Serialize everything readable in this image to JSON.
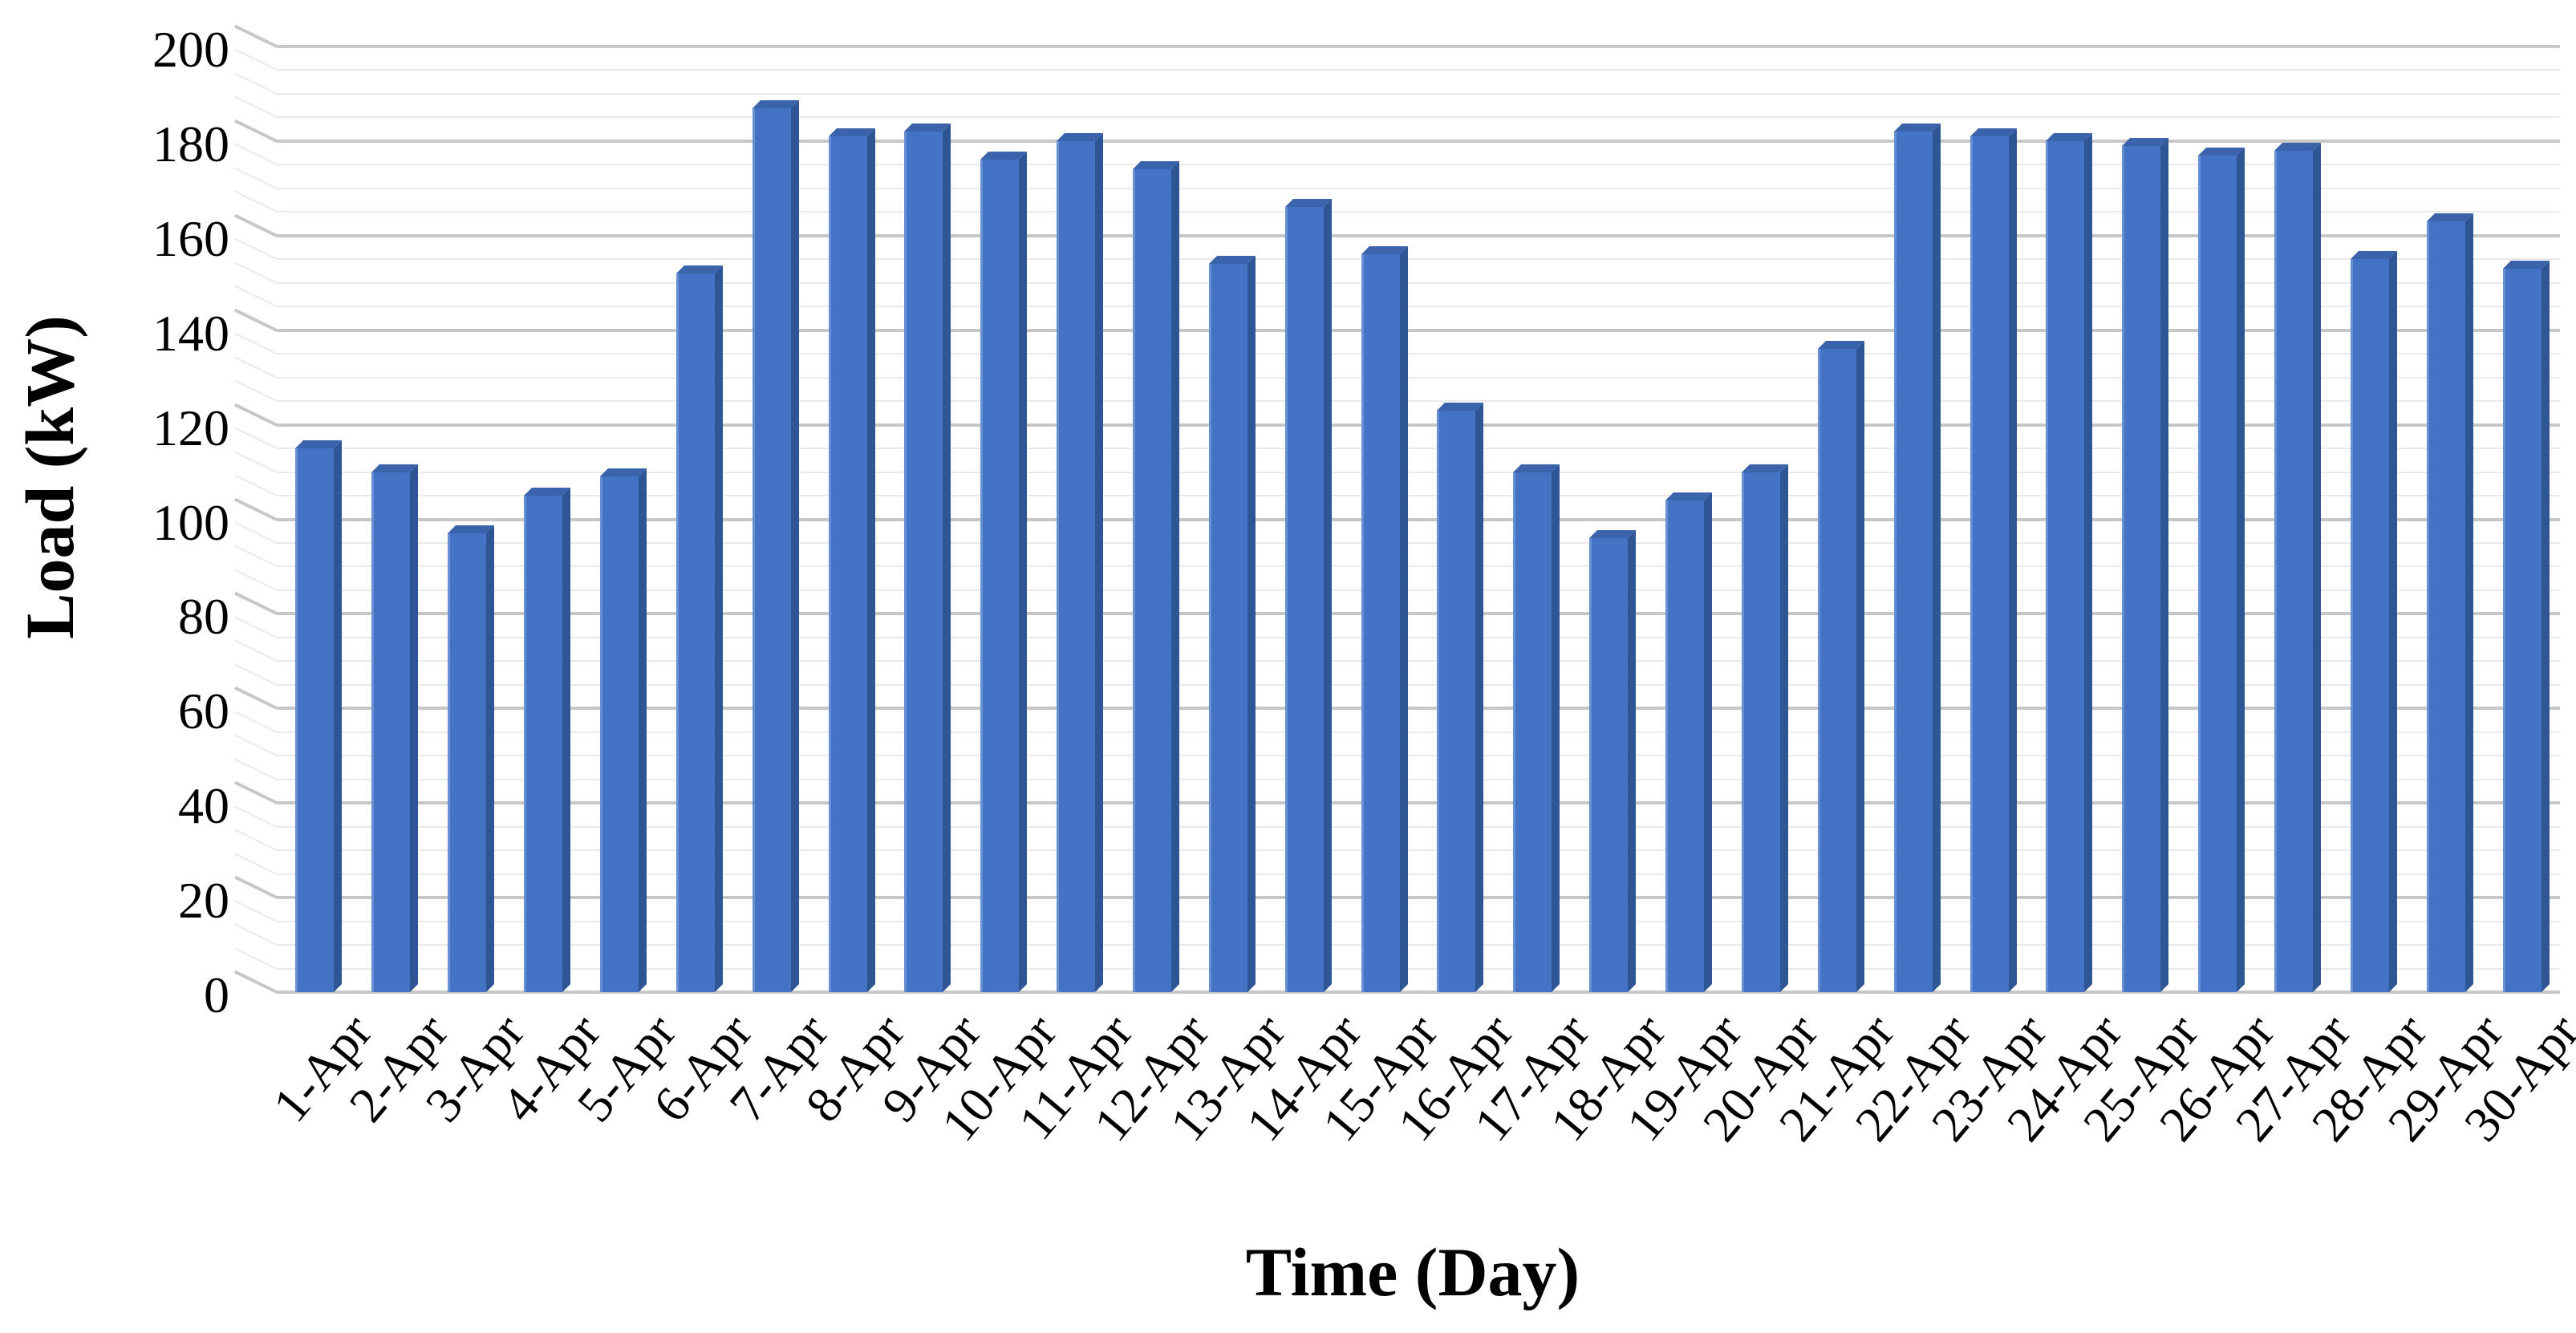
{
  "chart_data": {
    "type": "bar",
    "title": "",
    "xlabel": "Time (Day)",
    "ylabel": "Load (kW)",
    "categories": [
      "1-Apr",
      "2-Apr",
      "3-Apr",
      "4-Apr",
      "5-Apr",
      "6-Apr",
      "7-Apr",
      "8-Apr",
      "9-Apr",
      "10-Apr",
      "11-Apr",
      "12-Apr",
      "13-Apr",
      "14-Apr",
      "15-Apr",
      "16-Apr",
      "17-Apr",
      "18-Apr",
      "19-Apr",
      "20-Apr",
      "21-Apr",
      "22-Apr",
      "23-Apr",
      "24-Apr",
      "25-Apr",
      "26-Apr",
      "27-Apr",
      "28-Apr",
      "29-Apr",
      "30-Apr"
    ],
    "values": [
      115,
      110,
      97,
      105,
      109,
      152,
      187,
      181,
      182,
      176,
      180,
      174,
      154,
      166,
      156,
      123,
      110,
      96,
      104,
      110,
      136,
      182,
      181,
      180,
      179,
      177,
      178,
      155,
      163,
      153
    ],
    "ylim": [
      0,
      200
    ],
    "yticks": [
      0,
      20,
      40,
      60,
      80,
      100,
      120,
      140,
      160,
      180,
      200
    ],
    "ytick_step": 20,
    "minor_grid_step": 5,
    "grid": "on",
    "legend_position": "none",
    "style_3d": true,
    "colors": {
      "bar_front": "#4472C4",
      "bar_front_highlight": "#6690D2",
      "bar_side": "#2E5694",
      "bar_top": "#3A63AB",
      "grid_major": "#C7C7C7",
      "grid_minor": "#EAEAEA",
      "text": "#000000",
      "background": "#FFFFFF"
    }
  }
}
